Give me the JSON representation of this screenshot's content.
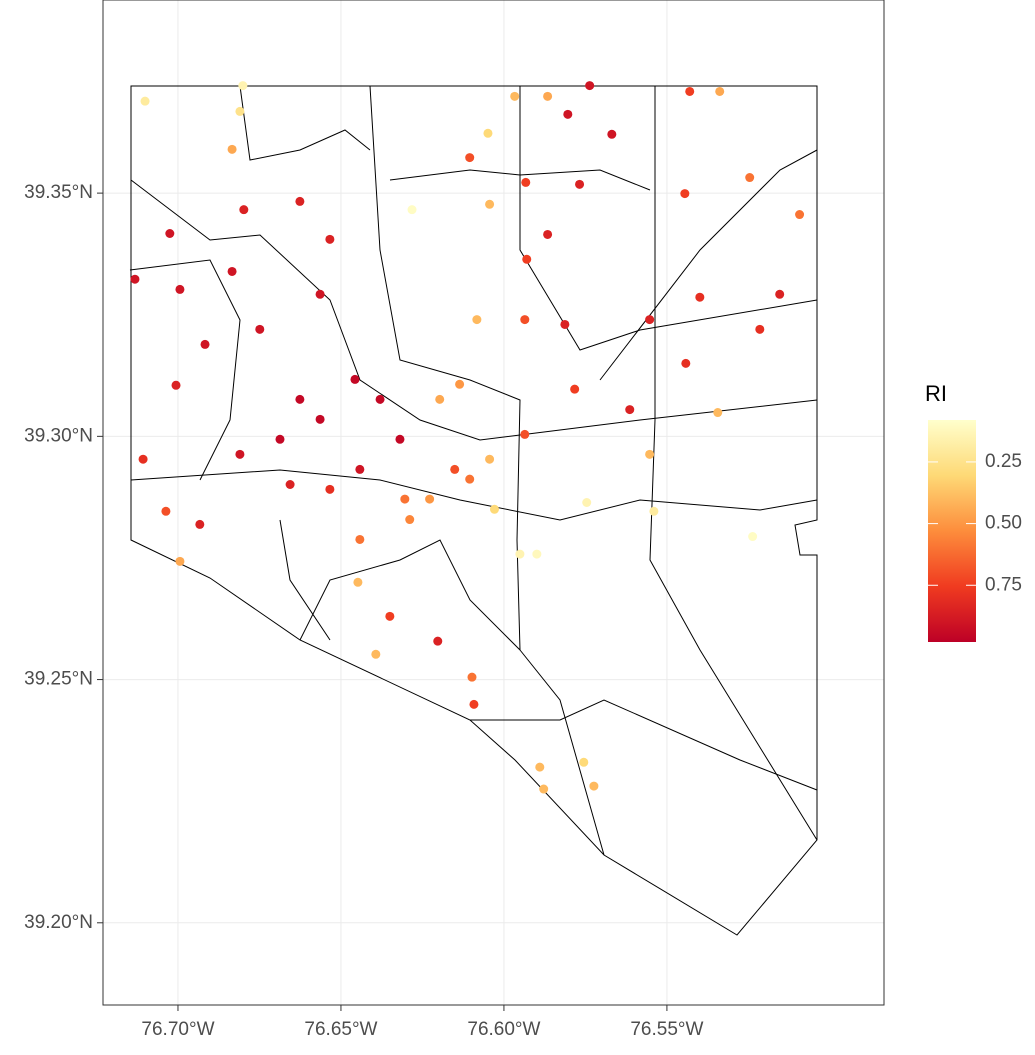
{
  "chart_data": {
    "type": "scatter",
    "legend_title": "RI",
    "x": [
      -76.7101,
      -76.6801,
      -76.681,
      -76.6834,
      -76.6798,
      -76.7025,
      -76.7132,
      -76.6994,
      -76.6834,
      -76.6626,
      -76.6534,
      -76.6564,
      -76.6749,
      -76.6917,
      -76.7006,
      -76.6626,
      -76.6564,
      -76.6457,
      -76.638,
      -76.6319,
      -76.6442,
      -76.6687,
      -76.681,
      -76.7107,
      -76.7037,
      -76.6933,
      -76.6994,
      -76.6534,
      -76.6442,
      -76.6289,
      -76.6228,
      -76.6197,
      -76.6136,
      -76.6044,
      -76.6105,
      -76.6029,
      -76.5951,
      -76.5899,
      -76.5936,
      -76.5783,
      -76.5614,
      -76.5553,
      -76.5746,
      -76.554,
      -76.5237,
      -76.5344,
      -76.5442,
      -76.5399,
      -76.5215,
      -76.5154,
      -76.5093,
      -76.5246,
      -76.5338,
      -76.543,
      -76.5445,
      -76.5553,
      -76.5737,
      -76.5804,
      -76.5669,
      -76.5768,
      -76.5866,
      -76.5967,
      -76.6049,
      -76.6282,
      -76.6105,
      -76.5933,
      -76.5866,
      -76.593,
      -76.5936,
      -76.5813,
      -76.6044,
      -76.6083,
      -76.6448,
      -76.6393,
      -76.635,
      -76.6203,
      -76.6098,
      -76.6092,
      -76.589,
      -76.5878,
      -76.5755,
      -76.5724,
      -76.6304,
      -76.6151,
      -76.6656
    ],
    "y": [
      39.3689,
      39.3721,
      39.3668,
      39.359,
      39.3466,
      39.3417,
      39.3323,
      39.3302,
      39.3339,
      39.3483,
      39.3405,
      39.3292,
      39.322,
      39.3189,
      39.3105,
      39.3076,
      39.3035,
      39.3117,
      39.3076,
      39.2994,
      39.2932,
      39.2994,
      39.2963,
      39.2953,
      39.2846,
      39.2819,
      39.2743,
      39.2891,
      39.2788,
      39.2829,
      39.2871,
      39.3076,
      39.3107,
      39.2953,
      39.2912,
      39.285,
      39.2758,
      39.2758,
      39.3004,
      39.3097,
      39.3055,
      39.2963,
      39.2864,
      39.2846,
      39.2794,
      39.3049,
      39.315,
      39.3286,
      39.322,
      39.3292,
      39.3456,
      39.3532,
      39.3709,
      39.3709,
      39.3499,
      39.324,
      39.3721,
      39.3662,
      39.3621,
      39.3518,
      39.3699,
      39.3699,
      39.3623,
      39.3466,
      39.3573,
      39.3522,
      39.3415,
      39.3364,
      39.324,
      39.323,
      39.3477,
      39.324,
      39.27,
      39.2552,
      39.263,
      39.2579,
      39.2505,
      39.2449,
      39.232,
      39.2275,
      39.233,
      39.2281,
      39.2871,
      39.2932,
      39.2901
    ],
    "color_values": [
      0.2,
      0.15,
      0.25,
      0.45,
      0.85,
      0.9,
      0.9,
      0.9,
      0.9,
      0.85,
      0.85,
      0.9,
      0.9,
      0.9,
      0.85,
      0.95,
      0.95,
      0.95,
      0.95,
      0.95,
      0.9,
      0.95,
      0.9,
      0.8,
      0.7,
      0.85,
      0.45,
      0.8,
      0.6,
      0.55,
      0.5,
      0.45,
      0.5,
      0.4,
      0.6,
      0.3,
      0.15,
      0.12,
      0.7,
      0.75,
      0.85,
      0.4,
      0.15,
      0.2,
      0.1,
      0.4,
      0.8,
      0.8,
      0.8,
      0.85,
      0.6,
      0.6,
      0.45,
      0.75,
      0.75,
      0.85,
      0.9,
      0.9,
      0.9,
      0.85,
      0.45,
      0.4,
      0.3,
      0.1,
      0.7,
      0.75,
      0.85,
      0.75,
      0.7,
      0.85,
      0.4,
      0.4,
      0.4,
      0.4,
      0.75,
      0.85,
      0.6,
      0.75,
      0.4,
      0.4,
      0.3,
      0.4,
      0.6,
      0.7,
      0.85
    ],
    "colorscale": [
      "#ffffcc",
      "#fed976",
      "#fd8d3c",
      "#f03b20",
      "#bd0026"
    ],
    "clim": [
      0.08,
      0.98
    ],
    "cticks": [
      0.25,
      {
        "value": 0.5,
        "label": "0.50"
      },
      0.75
    ],
    "xlim": [
      -76.723,
      -76.4834
    ],
    "ylim": [
      39.1831,
      39.3897
    ],
    "xticks": [
      {
        "value": -76.7,
        "label": "76.70°W"
      },
      {
        "value": -76.65,
        "label": "76.65°W"
      },
      {
        "value": -76.6,
        "label": "76.60°W"
      },
      {
        "value": -76.55,
        "label": "76.55°W"
      }
    ],
    "yticks": [
      {
        "value": 39.2,
        "label": "39.20°N"
      },
      {
        "value": 39.25,
        "label": "39.25°N"
      },
      {
        "value": 39.3,
        "label": "39.30°N"
      },
      {
        "value": 39.35,
        "label": "39.35°N"
      }
    ],
    "grid": true
  }
}
